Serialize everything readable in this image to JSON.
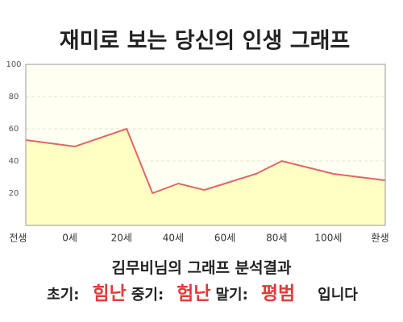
{
  "chart_data": {
    "type": "area",
    "title": "재미로 보는 당신의 인생 그래프",
    "x": [
      -17,
      2,
      22,
      32,
      42,
      52,
      62,
      72,
      82,
      92,
      102,
      122
    ],
    "values": [
      53,
      49,
      60,
      20,
      26,
      22,
      27,
      32,
      40,
      36,
      32,
      28
    ],
    "color": "#e06666",
    "fill": "#ffffc4",
    "xlim": [
      -17,
      122
    ],
    "xticks": [
      {
        "value": -20,
        "label": "전생"
      },
      {
        "value": 0,
        "label": "0세"
      },
      {
        "value": 20,
        "label": "20세"
      },
      {
        "value": 40,
        "label": "40세"
      },
      {
        "value": 60,
        "label": "60세"
      },
      {
        "value": 80,
        "label": "80세"
      },
      {
        "value": 100,
        "label": "100세"
      },
      {
        "value": 120,
        "label": "환생"
      }
    ],
    "ylim": [
      0,
      100
    ],
    "yticks": [
      20,
      40,
      60,
      80,
      100
    ],
    "grid": true
  },
  "result": {
    "heading": "김무비님의 그래프 분석결과",
    "items": [
      {
        "label": "초기:",
        "value": "힘난"
      },
      {
        "label": "중기:",
        "value": "험난"
      },
      {
        "label": "말기:",
        "value": "평범"
      }
    ],
    "ending": "입니다"
  }
}
